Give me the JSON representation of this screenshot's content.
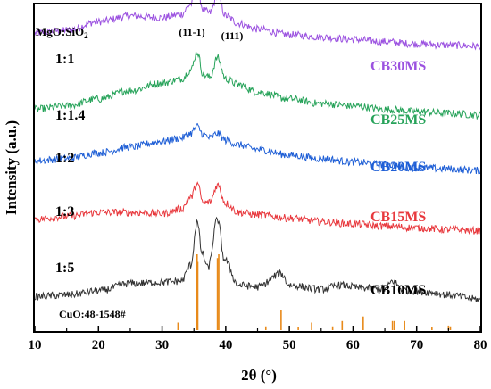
{
  "chart_data": {
    "type": "line",
    "xlabel": "2θ (°)",
    "ylabel": "Intensity (a.u.)",
    "xlim": [
      10,
      80
    ],
    "x_ticks": [
      "10",
      "20",
      "30",
      "40",
      "50",
      "60",
      "70",
      "80"
    ],
    "ratio_header": "MgO:SiO",
    "ratio_header_subscript": "2",
    "peak_labels": [
      "(11-1)",
      "(111)"
    ],
    "reference_label": "CuO:48-1548#",
    "series": [
      {
        "name": "CB30MS",
        "ratio": "1:1",
        "color": "#9b51e0",
        "x": [
          10,
          15,
          20,
          25,
          30,
          33,
          34.5,
          35.5,
          36.5,
          37.5,
          38.7,
          40,
          42,
          45,
          50,
          55,
          60,
          65,
          70,
          75,
          80
        ],
        "y": [
          4.85,
          4.9,
          5.05,
          5.15,
          5.12,
          5.18,
          5.35,
          5.62,
          5.25,
          5.2,
          5.5,
          5.15,
          5.02,
          4.92,
          4.82,
          4.78,
          4.74,
          4.7,
          4.66,
          4.64,
          4.62
        ]
      },
      {
        "name": "CB25MS",
        "ratio": "1:1.4",
        "color": "#27a35a",
        "x": [
          10,
          15,
          20,
          25,
          30,
          33,
          34.5,
          35.5,
          36.5,
          37.5,
          38.7,
          40,
          42,
          45,
          50,
          55,
          60,
          65,
          70,
          75,
          80
        ],
        "y": [
          3.52,
          3.58,
          3.7,
          3.85,
          3.98,
          4.05,
          4.2,
          4.52,
          4.12,
          4.08,
          4.42,
          4.05,
          3.95,
          3.82,
          3.7,
          3.62,
          3.58,
          3.52,
          3.48,
          3.45,
          3.42
        ]
      },
      {
        "name": "CB20MS",
        "ratio": "1:2",
        "color": "#1f5fd6",
        "x": [
          10,
          15,
          20,
          25,
          30,
          33,
          34.5,
          35.5,
          36.5,
          37.5,
          38.7,
          40,
          42,
          45,
          50,
          55,
          60,
          65,
          70,
          75,
          80
        ],
        "y": [
          2.62,
          2.66,
          2.76,
          2.86,
          2.96,
          3.02,
          3.1,
          3.22,
          3.08,
          3.02,
          3.1,
          2.98,
          2.9,
          2.82,
          2.72,
          2.66,
          2.6,
          2.55,
          2.5,
          2.48,
          2.45
        ]
      },
      {
        "name": "CB15MS",
        "ratio": "1:3",
        "color": "#e8383d",
        "x": [
          10,
          15,
          20,
          25,
          30,
          33,
          34.5,
          35.5,
          36.5,
          37.5,
          38.7,
          40,
          42,
          45,
          50,
          55,
          60,
          65,
          70,
          75,
          80
        ],
        "y": [
          1.6,
          1.65,
          1.72,
          1.72,
          1.7,
          1.78,
          1.98,
          2.22,
          1.88,
          1.9,
          2.2,
          1.88,
          1.72,
          1.68,
          1.62,
          1.56,
          1.52,
          1.48,
          1.45,
          1.42,
          1.4
        ]
      },
      {
        "name": "CB10MS",
        "ratio": "1:5",
        "color": "#333333",
        "x": [
          10,
          15,
          20,
          25,
          30,
          33,
          34.5,
          35.5,
          36.3,
          37.2,
          38.7,
          39.8,
          42,
          45,
          48.7,
          50,
          55,
          58,
          61.5,
          65,
          66.2,
          68,
          72,
          75,
          80
        ],
        "y": [
          0.25,
          0.28,
          0.35,
          0.48,
          0.5,
          0.52,
          0.8,
          1.55,
          1.0,
          0.75,
          1.6,
          0.9,
          0.45,
          0.42,
          0.65,
          0.45,
          0.38,
          0.45,
          0.4,
          0.38,
          0.52,
          0.36,
          0.33,
          0.28,
          0.2
        ]
      }
    ],
    "reference": {
      "name": "CuO:48-1548#",
      "color": "#e88a1a",
      "x": [
        32.5,
        35.5,
        35.6,
        38.7,
        38.9,
        46.3,
        48.7,
        51.4,
        53.5,
        56.8,
        58.3,
        61.6,
        66.2,
        66.5,
        68.1,
        72.4,
        75.0,
        75.3
      ],
      "y": [
        0.1,
        1.0,
        0.9,
        0.95,
        1.0,
        0.05,
        0.27,
        0.04,
        0.1,
        0.05,
        0.12,
        0.18,
        0.12,
        0.12,
        0.12,
        0.04,
        0.06,
        0.05
      ]
    }
  }
}
